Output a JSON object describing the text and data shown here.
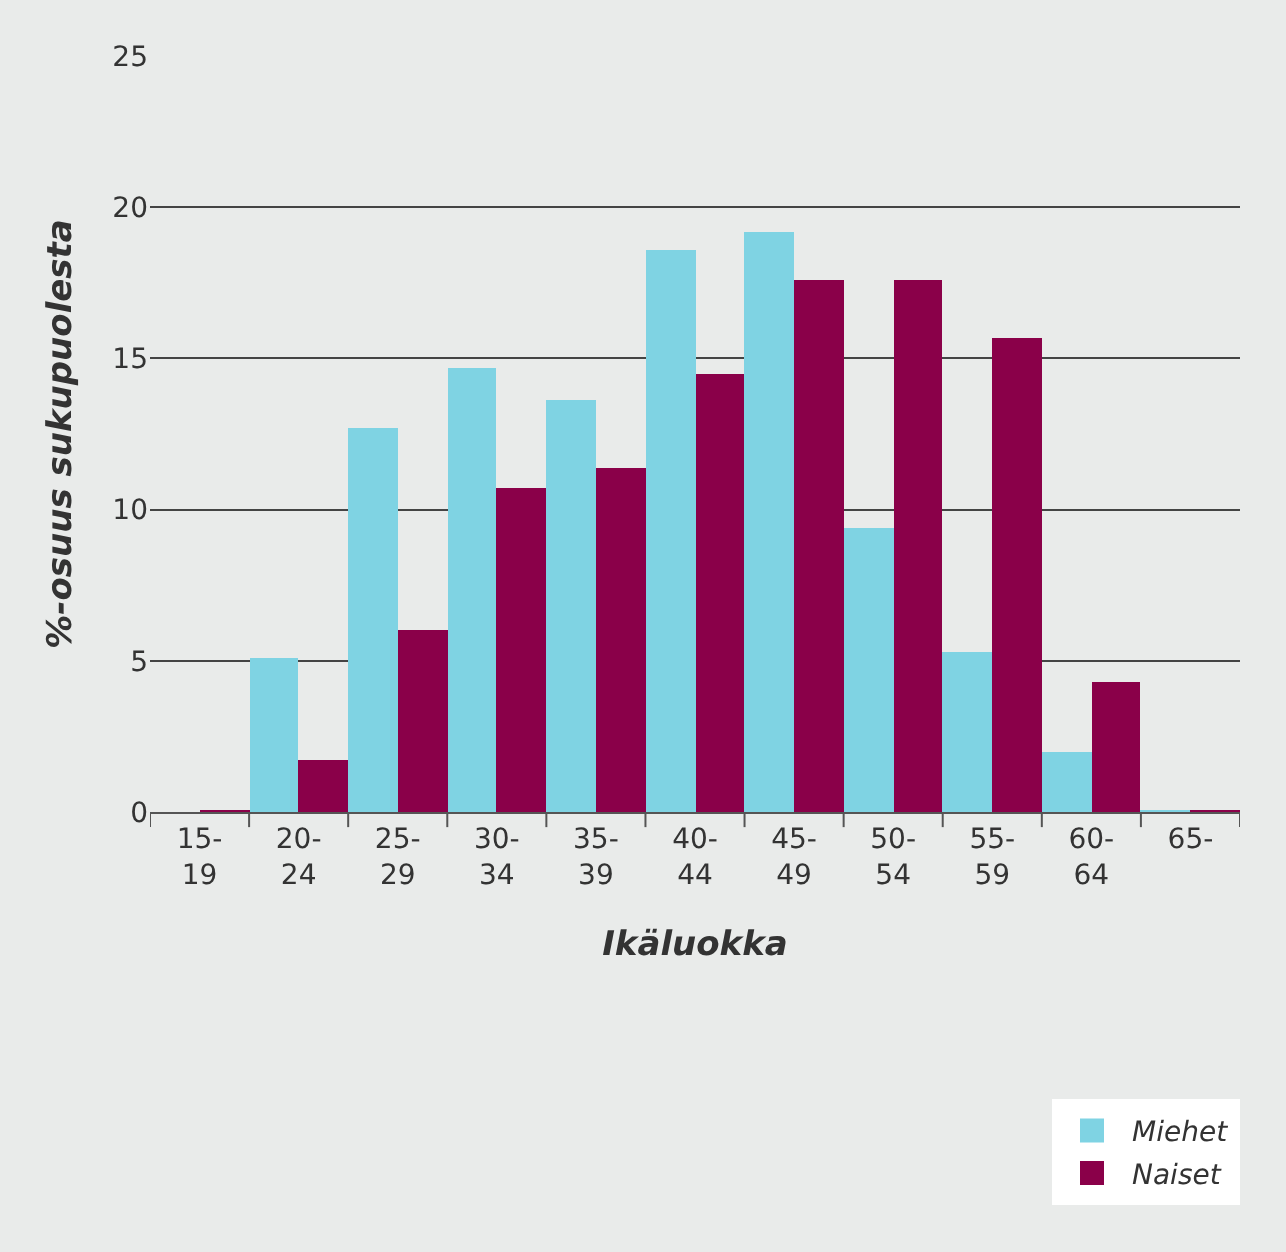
{
  "chart_data": {
    "type": "bar",
    "xlabel": "Ikäluokka",
    "ylabel": "%-osuus sukupuolesta",
    "categories": [
      "15-\n19",
      "20-\n24",
      "25-\n29",
      "30-\n34",
      "35-\n39",
      "40-\n44",
      "45-\n49",
      "50-\n54",
      "55-\n59",
      "60-\n64",
      "65-"
    ],
    "series": [
      {
        "name": "Miehet",
        "color": "#7fd3e3",
        "values": [
          0,
          5.1,
          12.7,
          14.7,
          13.6,
          18.6,
          19.2,
          9.4,
          5.3,
          2.0,
          0.05
        ]
      },
      {
        "name": "Naiset",
        "color": "#8a0049",
        "values": [
          0.05,
          1.7,
          6.0,
          10.7,
          11.4,
          14.5,
          17.6,
          17.6,
          15.7,
          4.3,
          0.05
        ]
      }
    ],
    "ylim": [
      0,
      25
    ],
    "yticks": [
      0,
      5,
      10,
      15,
      20,
      25
    ],
    "grid": "y",
    "legend": "bottom right"
  }
}
